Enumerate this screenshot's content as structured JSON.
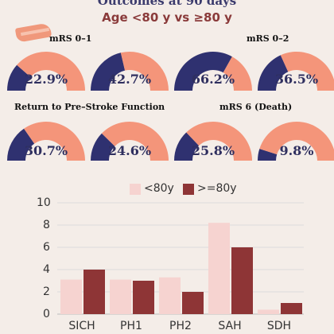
{
  "header": {
    "title": "Outcomes at 90 days",
    "subtitle": "Age <80 y vs ≥80 y"
  },
  "sections": {
    "mrs01": "mRS 0–1",
    "mrs02": "mRS 0–2",
    "return": "Return to Pre–Stroke Function",
    "mrs6": "mRS 6 (Death)"
  },
  "gauges": [
    {
      "label": "22.9%",
      "value": 22.9
    },
    {
      "label": "42.7%",
      "value": 42.7
    },
    {
      "label": "66.2%",
      "value": 66.2
    },
    {
      "label": "36.5%",
      "value": 36.5
    },
    {
      "label": "30.7%",
      "value": 30.7
    },
    {
      "label": "24.6%",
      "value": 24.6
    },
    {
      "label": "25.8%",
      "value": 25.8
    },
    {
      "label": "9.8%",
      "value": 9.8
    }
  ],
  "colors": {
    "navy": "#2f3170",
    "salmon": "#f4957a",
    "light": "#f6d3d0",
    "dark": "#8e3536"
  },
  "chart_data": {
    "type": "bar",
    "categories": [
      "SICH",
      "PH1",
      "PH2",
      "SAH",
      "SDH"
    ],
    "series": [
      {
        "name": "<80y",
        "values": [
          3.1,
          3.1,
          3.3,
          8.2,
          0.4
        ]
      },
      {
        "name": ">=80y",
        "values": [
          4.0,
          3.0,
          2.0,
          6.0,
          1.0
        ]
      }
    ],
    "ylim": [
      0,
      10
    ],
    "yticks": [
      "0",
      "2",
      "4",
      "6",
      "8",
      "10"
    ],
    "legend": "top-center",
    "grid": true
  }
}
